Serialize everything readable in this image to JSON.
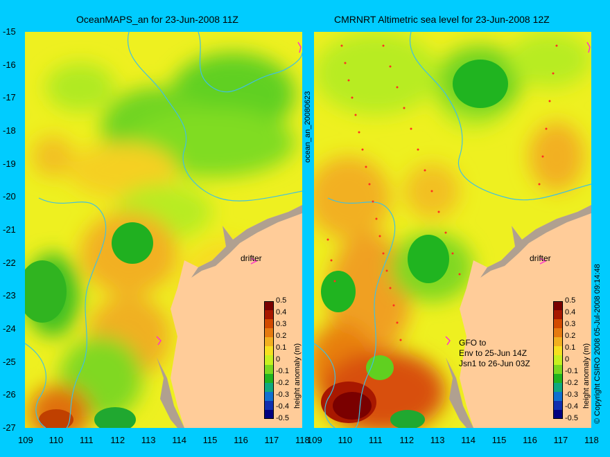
{
  "left": {
    "title": "OceanMAPS_an for 23-Jun-2008 11Z",
    "side_label": "ocean_an_20080623",
    "drifter_label": "drifter"
  },
  "right": {
    "title": "CMRNRT Altimetric sea level  for 23-Jun-2008 12Z",
    "drifter_label": "drifter",
    "note": [
      "GFO to",
      "Env to 25-Jun 14Z",
      "Jsn1 to 26-Jun 03Z"
    ],
    "copyright": "© Copyright CSIRO 2008   05-Jul-2008 09:14:48"
  },
  "y_ticks": [
    "-15",
    "-16",
    "-17",
    "-18",
    "-19",
    "-20",
    "-21",
    "-22",
    "-23",
    "-24",
    "-25",
    "-26",
    "-27"
  ],
  "x_ticks": [
    "109",
    "110",
    "111",
    "112",
    "113",
    "114",
    "115",
    "116",
    "117",
    "118"
  ],
  "colorbar": {
    "title": "height anomaly (m)",
    "labels": [
      "0.5",
      "0.4",
      "0.3",
      "0.2",
      "0.1",
      "0",
      "-0.1",
      "-0.2",
      "-0.3",
      "-0.4",
      "-0.5"
    ],
    "colors": [
      "#7a0000",
      "#a81800",
      "#d24a00",
      "#e67a10",
      "#f2b020",
      "#f7e020",
      "#c8f020",
      "#7ad820",
      "#20b420",
      "#10a880",
      "#1070d0",
      "#1030b0",
      "#000080"
    ]
  },
  "colors": {
    "background": "#00ccff",
    "land": "#ffcc99",
    "coast": "#b0a090",
    "contour": "#40c0e0",
    "marker": "#ff33cc"
  }
}
